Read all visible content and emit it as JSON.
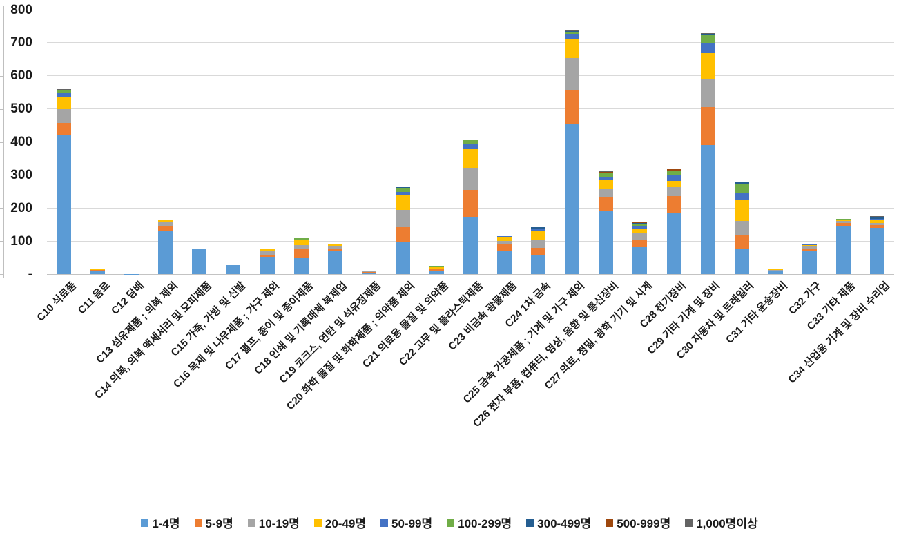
{
  "chart_data": {
    "type": "bar",
    "stacked": true,
    "title": "",
    "xlabel": "",
    "ylabel": "",
    "y_axis": {
      "min": 0,
      "max": 800,
      "step": 100,
      "zero_label": "-",
      "tick_labels": [
        "-",
        "100",
        "200",
        "300",
        "400",
        "500",
        "600",
        "700",
        "800"
      ]
    },
    "grid": true,
    "legend_position": "bottom",
    "categories": [
      "C10 식료품",
      "C11 음료",
      "C12 담배",
      "C13 섬유제품 ; 의복 제외",
      "C14 의복, 의복 액세서리 및 모피제품",
      "C15 가죽, 가방 및 신발",
      "C16 목재 및 나무제품 ; 가구 제외",
      "C17 펄프, 종이 및 종이제품",
      "C18 인쇄 및 기록매체 복제업",
      "C19 코크스, 연탄 및 석유정제품",
      "C20 화학 물질 및 화학제품 ; 의약품 제외",
      "C21 의료용 물질 및 의약품",
      "C22 고무 및 플라스틱제품",
      "C23 비금속 광물제품",
      "C24 1차 금속",
      "C25 금속 가공제품 ; 기계 및 가구 제외",
      "C26 전자 부품, 컴퓨터, 영상, 음향 및 통신장비",
      "C27 의료, 정밀, 광학 기기 및 시계",
      "C28 전기장비",
      "C29 기타 기계 및 장비",
      "C30 자동차 및 트레일러",
      "C31 기타 운송장비",
      "C32 가구",
      "C33 기타 제품",
      "C34 산업용 기계 및 장비 수리업"
    ],
    "series": [
      {
        "name": "1-4명",
        "color": "#5B9BD5",
        "values": [
          420,
          12,
          1,
          132,
          76,
          27,
          52,
          51,
          72,
          5,
          98,
          11,
          171,
          72,
          56,
          455,
          190,
          81,
          187,
          391,
          75,
          9,
          69,
          144,
          140
        ]
      },
      {
        "name": "5-9명",
        "color": "#ED7D31",
        "values": [
          38,
          1,
          0,
          14,
          0,
          0,
          7,
          26,
          6,
          1,
          45,
          3,
          84,
          18,
          24,
          103,
          44,
          21,
          49,
          115,
          42,
          2,
          8,
          10,
          9
        ]
      },
      {
        "name": "10-19명",
        "color": "#A5A5A5",
        "values": [
          42,
          1,
          0,
          11,
          0,
          0,
          11,
          10,
          6,
          2,
          51,
          3,
          65,
          10,
          23,
          95,
          23,
          23,
          28,
          84,
          43,
          1,
          7,
          6,
          6
        ]
      },
      {
        "name": "20-49명",
        "color": "#FFC000",
        "values": [
          35,
          1,
          0,
          6,
          0,
          0,
          7,
          15,
          6,
          0,
          44,
          4,
          59,
          12,
          26,
          58,
          27,
          13,
          18,
          78,
          63,
          2,
          4,
          4,
          9
        ]
      },
      {
        "name": "50-99명",
        "color": "#4472C4",
        "values": [
          15,
          0,
          0,
          0,
          0,
          0,
          0,
          0,
          0,
          0,
          11,
          2,
          14,
          4,
          6,
          15,
          8,
          8,
          17,
          30,
          24,
          0,
          3,
          0,
          3
        ]
      },
      {
        "name": "100-299명",
        "color": "#70AD47",
        "values": [
          6,
          1,
          0,
          2,
          2,
          0,
          0,
          9,
          0,
          0,
          13,
          3,
          12,
          0,
          4,
          5,
          14,
          5,
          14,
          26,
          24,
          0,
          0,
          4,
          0
        ]
      },
      {
        "name": "300-499명",
        "color": "#255E91",
        "values": [
          0,
          0,
          0,
          0,
          0,
          0,
          0,
          0,
          0,
          0,
          2,
          0,
          0,
          0,
          3,
          4,
          0,
          4,
          0,
          3,
          8,
          0,
          0,
          0,
          6
        ]
      },
      {
        "name": "500-999명",
        "color": "#9E480E",
        "values": [
          2,
          0,
          0,
          0,
          0,
          0,
          0,
          0,
          0,
          0,
          0,
          0,
          0,
          0,
          0,
          0,
          4,
          3,
          4,
          0,
          0,
          0,
          0,
          0,
          0
        ]
      },
      {
        "name": "1,000명이상",
        "color": "#636363",
        "values": [
          2,
          0,
          0,
          0,
          0,
          0,
          0,
          0,
          0,
          0,
          0,
          0,
          0,
          0,
          0,
          2,
          3,
          0,
          0,
          2,
          0,
          0,
          0,
          0,
          3
        ]
      }
    ]
  }
}
